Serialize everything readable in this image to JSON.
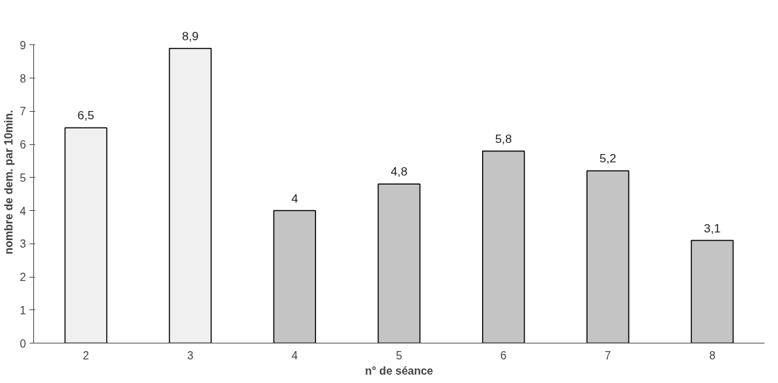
{
  "chart_data": {
    "type": "bar",
    "xlabel": "n° de séance",
    "ylabel": "nombre de dem. par 10min.",
    "categories": [
      "2",
      "3",
      "4",
      "5",
      "6",
      "7",
      "8"
    ],
    "values": [
      6.5,
      8.9,
      4,
      4.8,
      5.8,
      5.2,
      3.1
    ],
    "colors": [
      "#f0f0f0",
      "#f0f0f0",
      "#c4c4c4",
      "#c4c4c4",
      "#c4c4c4",
      "#c4c4c4",
      "#c4c4c4"
    ],
    "value_labels": [
      "6,5",
      "8,9",
      "4",
      "4,8",
      "5,8",
      "5,2",
      "3,1"
    ],
    "ylim": [
      0,
      9
    ],
    "yticks": [
      0,
      1,
      2,
      3,
      4,
      5,
      6,
      7,
      8,
      9
    ],
    "grid": false
  }
}
